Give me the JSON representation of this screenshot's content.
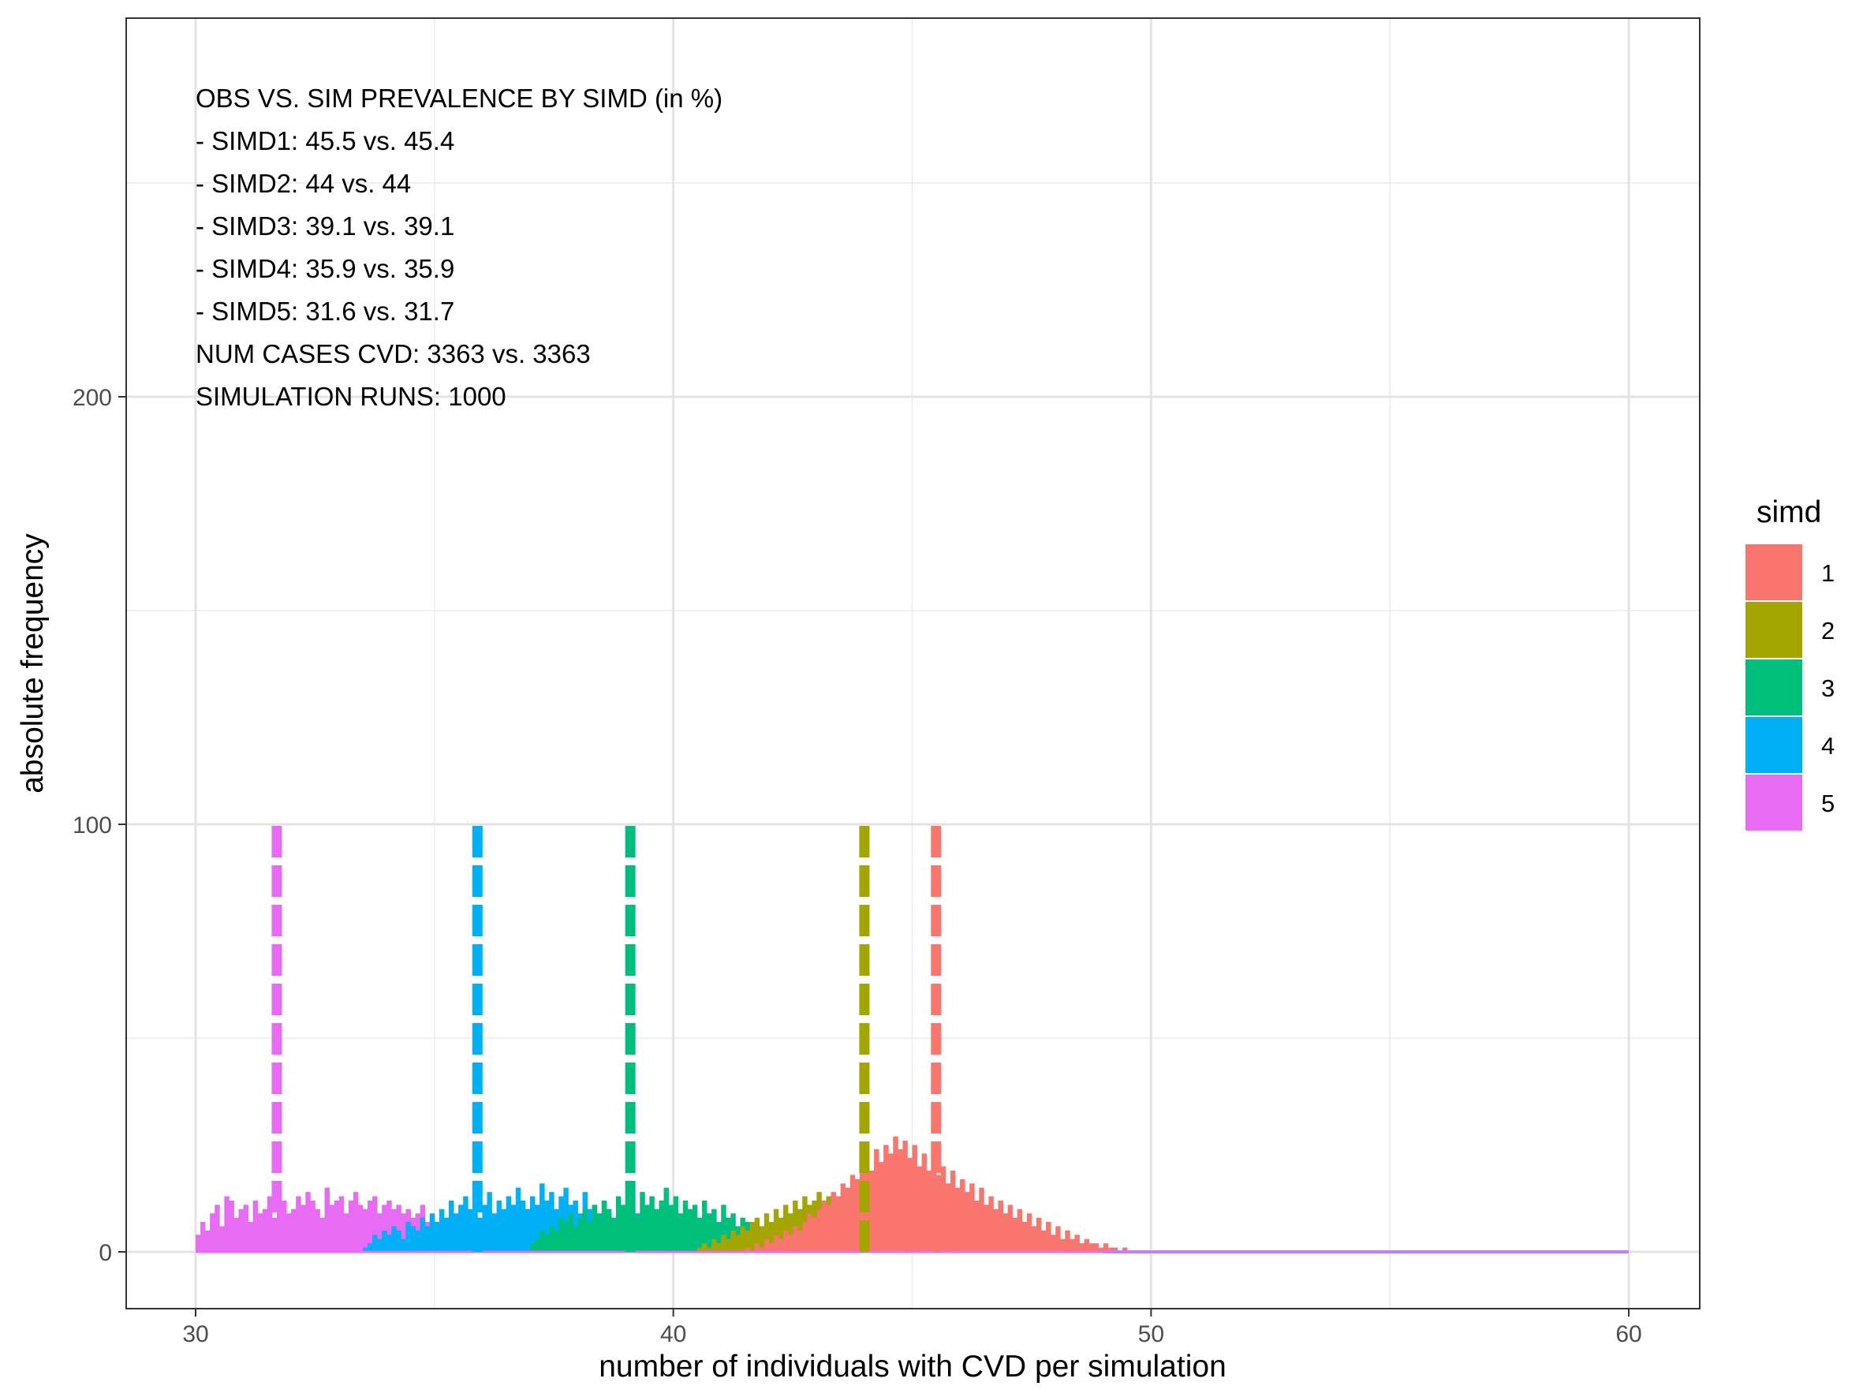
{
  "chart_data": {
    "type": "bar",
    "subtype": "histogram",
    "xlabel": "number of individuals with CVD per simulation",
    "ylabel": "absolute frequency",
    "xlim": [
      28.5,
      61.5
    ],
    "ylim": [
      -13,
      280
    ],
    "x_ticks": [
      30,
      40,
      50,
      60
    ],
    "y_ticks": [
      0,
      100,
      200
    ],
    "grid": true,
    "bin_width": 0.1,
    "legend": {
      "title": "simd",
      "position": "right",
      "items": [
        {
          "label": "1",
          "color": "#F8766D"
        },
        {
          "label": "2",
          "color": "#A3A500"
        },
        {
          "label": "3",
          "color": "#00BF7D"
        },
        {
          "label": "4",
          "color": "#00B0F6"
        },
        {
          "label": "5",
          "color": "#E76BF3"
        }
      ]
    },
    "annotations": [
      "OBS VS. SIM PREVALENCE BY SIMD (in %)",
      "- SIMD1: 45.5 vs. 45.4",
      "- SIMD2: 44 vs. 44",
      "- SIMD3: 39.1 vs. 39.1",
      "- SIMD4: 35.9 vs. 35.9",
      "- SIMD5: 31.6 vs. 31.7",
      "NUM CASES CVD: 3363 vs. 3363",
      "SIMULATION RUNS: 1000"
    ],
    "reference_lines": [
      {
        "series": "5",
        "x": 31.7,
        "y_max": 100,
        "style": "dashed"
      },
      {
        "series": "4",
        "x": 35.9,
        "y_max": 100,
        "style": "dashed"
      },
      {
        "series": "3",
        "x": 39.1,
        "y_max": 100,
        "style": "dashed"
      },
      {
        "series": "2",
        "x": 44.0,
        "y_max": 100,
        "style": "dashed"
      },
      {
        "series": "1",
        "x": 45.5,
        "y_max": 100,
        "style": "dashed"
      }
    ],
    "series": [
      {
        "name": "5",
        "color": "#E76BF3",
        "x_start": 30.0,
        "values": [
          4,
          7,
          5,
          9,
          11,
          6,
          13,
          12,
          8,
          10,
          11,
          7,
          12,
          9,
          10,
          13,
          8,
          11,
          12,
          9,
          10,
          13,
          11,
          14,
          12,
          10,
          8,
          15,
          11,
          12,
          13,
          9,
          12,
          14,
          11,
          10,
          12,
          13,
          9,
          11,
          12,
          10,
          11,
          9,
          10,
          8,
          9,
          11,
          7,
          8,
          6,
          7,
          5,
          6,
          4,
          5,
          3,
          4,
          3,
          2,
          3,
          2,
          2,
          1,
          2,
          1,
          1,
          1,
          0,
          1
        ]
      },
      {
        "name": "4",
        "color": "#00B0F6",
        "x_start": 33.5,
        "values": [
          1,
          2,
          4,
          3,
          5,
          4,
          6,
          5,
          3,
          7,
          6,
          5,
          8,
          6,
          9,
          7,
          10,
          8,
          12,
          9,
          11,
          13,
          10,
          12,
          8,
          11,
          14,
          9,
          12,
          10,
          13,
          11,
          15,
          12,
          10,
          13,
          11,
          16,
          12,
          14,
          10,
          13,
          15,
          11,
          12,
          9,
          14,
          10,
          11,
          8,
          12,
          9,
          7,
          10,
          8,
          6,
          9,
          7,
          5,
          6,
          4,
          5,
          3,
          4,
          2,
          3,
          2,
          1,
          2,
          1
        ]
      },
      {
        "name": "3",
        "color": "#00BF7D",
        "x_start": 37.0,
        "values": [
          2,
          3,
          5,
          4,
          6,
          5,
          8,
          7,
          9,
          6,
          8,
          10,
          7,
          11,
          9,
          12,
          10,
          8,
          13,
          11,
          10,
          12,
          9,
          14,
          11,
          13,
          10,
          12,
          15,
          11,
          13,
          9,
          12,
          10,
          11,
          8,
          12,
          9,
          10,
          7,
          11,
          8,
          9,
          6,
          8,
          7,
          5,
          6,
          4,
          5,
          3,
          4,
          2,
          3,
          2,
          1,
          2,
          1,
          1,
          1
        ]
      },
      {
        "name": "2",
        "color": "#A3A500",
        "x_start": 40.5,
        "values": [
          1,
          2,
          1,
          3,
          2,
          4,
          3,
          5,
          4,
          6,
          5,
          7,
          8,
          6,
          9,
          7,
          10,
          8,
          11,
          9,
          12,
          10,
          13,
          11,
          12,
          14,
          10,
          13,
          11,
          12,
          9,
          14,
          11,
          13,
          10,
          12,
          9,
          11,
          8,
          10,
          7,
          9,
          6,
          8,
          5,
          7,
          4,
          6,
          3,
          5,
          2,
          4,
          2,
          3,
          1,
          2,
          1,
          1
        ]
      },
      {
        "name": "1",
        "color": "#F8766D",
        "x_start": 41.5,
        "values": [
          1,
          0,
          2,
          1,
          3,
          2,
          4,
          3,
          5,
          4,
          6,
          5,
          7,
          9,
          8,
          10,
          12,
          11,
          14,
          13,
          16,
          15,
          18,
          17,
          20,
          22,
          19,
          24,
          21,
          25,
          23,
          27,
          24,
          26,
          22,
          25,
          20,
          23,
          19,
          21,
          18,
          20,
          16,
          19,
          15,
          17,
          14,
          16,
          12,
          15,
          11,
          13,
          10,
          12,
          9,
          11,
          8,
          10,
          7,
          9,
          6,
          8,
          5,
          7,
          4,
          6,
          3,
          5,
          3,
          4,
          2,
          3,
          2,
          2,
          1,
          2,
          1,
          1,
          0,
          1
        ]
      },
      {
        "name": "flat",
        "color": "#E76BF3",
        "x_start": 49.0,
        "values": [
          0
        ]
      }
    ]
  }
}
